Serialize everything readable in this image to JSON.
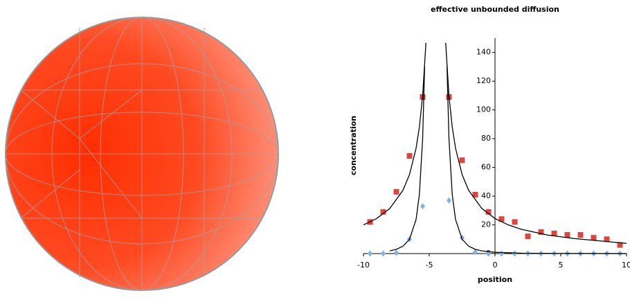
{
  "chart_data": {
    "type": "scatter",
    "title": "effective unbounded diffusion",
    "xlabel": "position",
    "ylabel": "concentration",
    "xlim": [
      -10,
      10
    ],
    "xticks": [
      -10,
      -5,
      0,
      5,
      10
    ],
    "ylim": [
      0,
      150
    ],
    "yticks": [
      0,
      20,
      40,
      60,
      80,
      100,
      120,
      140
    ],
    "grid": false,
    "series": [
      {
        "color": "#e0443c",
        "marker": "square",
        "x": [
          -9.5,
          -8.5,
          -7.5,
          -6.5,
          -5.5,
          -3.5,
          -2.5,
          -1.5,
          -0.5,
          0.5,
          1.5,
          2.5,
          3.5,
          4.5,
          5.5,
          6.5,
          7.5,
          8.5,
          9.5
        ],
        "values": [
          22,
          29,
          43,
          68,
          109,
          109,
          65,
          41,
          29,
          24,
          22,
          12,
          15,
          14,
          13,
          13,
          11,
          10,
          6
        ]
      },
      {
        "color": "#7fb2ea",
        "marker": "diamond",
        "x": [
          -9.5,
          -8.5,
          -7.5,
          -6.5,
          -5.5,
          -3.5,
          -2.5,
          -1.5,
          -0.5,
          0.5,
          1.5,
          2.5,
          3.5,
          4.5,
          5.5,
          6.5,
          7.5,
          8.5,
          9.5
        ],
        "values": [
          0,
          0,
          0.5,
          10,
          33,
          37,
          11,
          1,
          0,
          0,
          0,
          0,
          0,
          0,
          0,
          0,
          0,
          0,
          0
        ]
      },
      {
        "color": "#000000",
        "marker": "line",
        "x": [
          -10,
          -9,
          -8,
          -7,
          -6.5,
          -6,
          -5.75,
          -5.5,
          -5.25,
          null,
          -3.75,
          -3.5,
          -3.25,
          -3,
          -2.5,
          -2,
          -1,
          0,
          1,
          2,
          4,
          6,
          8,
          10
        ],
        "values": [
          20,
          24.4,
          31.4,
          44,
          55,
          73.3,
          88,
          110,
          146.7,
          null,
          146.7,
          110,
          88,
          73.3,
          55,
          44,
          31.4,
          24.4,
          20,
          16.9,
          12.9,
          10.5,
          8.8,
          7.1
        ]
      },
      {
        "color": "#000000",
        "marker": "line",
        "x": [
          -8,
          -7.5,
          -7,
          -6.5,
          -6,
          -5.75,
          -5.5,
          -5.35,
          null,
          -3.65,
          -3.5,
          -3.25,
          -3,
          -2.5,
          -2,
          -1.5,
          -1,
          0,
          2,
          5,
          10
        ],
        "values": [
          1.87,
          2.96,
          5.12,
          10,
          23.7,
          41,
          80,
          130.3,
          null,
          130.3,
          80,
          41,
          23.7,
          10,
          5.12,
          2.96,
          1.87,
          0.88,
          0.29,
          0.09,
          0.02
        ]
      }
    ]
  }
}
